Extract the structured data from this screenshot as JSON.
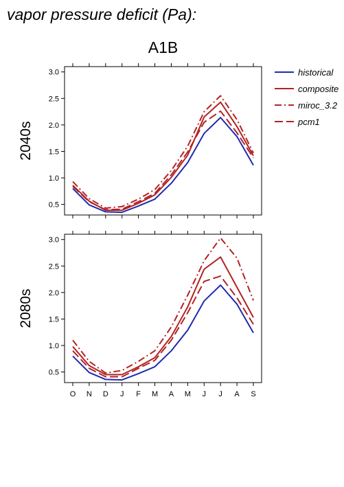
{
  "page": {
    "title": "vapor pressure deficit (Pa):",
    "scenario": "A1B"
  },
  "chart_data": {
    "type": "line",
    "x_categories": [
      "O",
      "N",
      "D",
      "J",
      "F",
      "M",
      "A",
      "M",
      "J",
      "J",
      "A",
      "S"
    ],
    "ylim": [
      0.3,
      3.1
    ],
    "yticks": [
      0.5,
      1.0,
      1.5,
      2.0,
      2.5,
      3.0
    ],
    "ytick_labels": [
      "0.5",
      "1.0",
      "1.5",
      "2.0",
      "2.5",
      "3.0"
    ],
    "legend": {
      "position": "top-right",
      "entries": [
        {
          "name": "historical",
          "color": "#1f2ab0",
          "dash": "solid"
        },
        {
          "name": "composite",
          "color": "#b22222",
          "dash": "solid"
        },
        {
          "name": "miroc_3.2",
          "color": "#b22222",
          "dash": "dashdot"
        },
        {
          "name": "pcm1",
          "color": "#b22222",
          "dash": "dashed"
        }
      ]
    },
    "panels": [
      {
        "label": "2040s",
        "series": [
          {
            "name": "historical",
            "values": [
              0.8,
              0.49,
              0.36,
              0.35,
              0.47,
              0.6,
              0.9,
              1.29,
              1.84,
              2.14,
              1.78,
              1.24
            ]
          },
          {
            "name": "composite",
            "values": [
              0.86,
              0.56,
              0.39,
              0.39,
              0.52,
              0.68,
              1.01,
              1.43,
              2.15,
              2.43,
              1.97,
              1.42
            ]
          },
          {
            "name": "miroc_3.2",
            "values": [
              0.93,
              0.61,
              0.43,
              0.46,
              0.6,
              0.78,
              1.14,
              1.6,
              2.25,
              2.55,
              2.1,
              1.47
            ]
          },
          {
            "name": "pcm1",
            "values": [
              0.84,
              0.55,
              0.4,
              0.41,
              0.55,
              0.71,
              1.06,
              1.49,
              2.05,
              2.26,
              1.85,
              1.38
            ]
          }
        ]
      },
      {
        "label": "2080s",
        "series": [
          {
            "name": "historical",
            "values": [
              0.8,
              0.49,
              0.36,
              0.35,
              0.47,
              0.6,
              0.9,
              1.29,
              1.84,
              2.14,
              1.78,
              1.24
            ]
          },
          {
            "name": "composite",
            "values": [
              0.98,
              0.62,
              0.45,
              0.45,
              0.6,
              0.77,
              1.17,
              1.73,
              2.44,
              2.67,
              2.1,
              1.53
            ]
          },
          {
            "name": "miroc_3.2",
            "values": [
              1.1,
              0.7,
              0.48,
              0.53,
              0.7,
              0.9,
              1.35,
              1.95,
              2.6,
              3.03,
              2.65,
              1.85
            ]
          },
          {
            "name": "pcm1",
            "values": [
              0.9,
              0.57,
              0.41,
              0.41,
              0.57,
              0.72,
              1.1,
              1.62,
              2.21,
              2.31,
              1.9,
              1.4
            ]
          }
        ]
      }
    ]
  }
}
